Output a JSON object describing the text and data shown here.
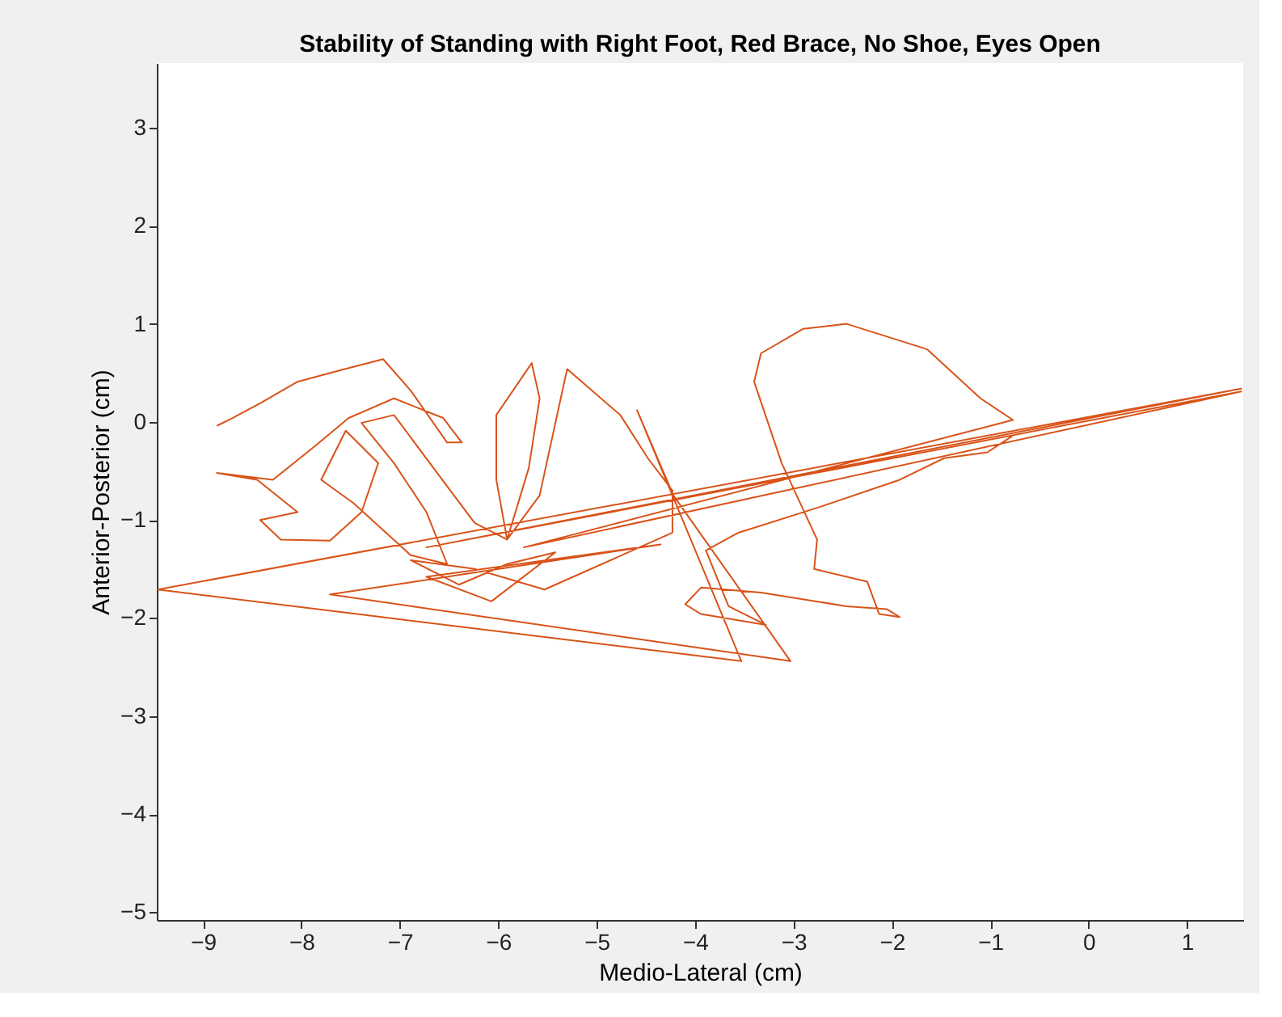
{
  "chart_data": {
    "type": "line",
    "title": "Stability of Standing with Right Foot, Red Brace, No Shoe, Eyes Open",
    "xlabel": "Medio-Lateral (cm)",
    "ylabel": "Anterior-Posterior (cm)",
    "xlim": [
      -9.47,
      1.57
    ],
    "ylim": [
      -5.08,
      3.66
    ],
    "xticks": [
      -9,
      -8,
      -7,
      -6,
      -5,
      -4,
      -3,
      -2,
      -1,
      0,
      1
    ],
    "yticks": [
      -5,
      -4,
      -3,
      -2,
      -1,
      0,
      1,
      2,
      3
    ],
    "grid": false,
    "marker": "none",
    "line_style": "solid",
    "series": [
      {
        "color": "#d95319",
        "x": [
          -8.86,
          -8.7,
          -8.42,
          -8.04,
          -7.63,
          -7.17,
          -6.89,
          -6.52,
          -6.37,
          -6.56,
          -7.06,
          -7.52,
          -7.88,
          -8.29,
          -8.86,
          -8.45,
          -8.04,
          -8.42,
          -8.21,
          -7.71,
          -7.39,
          -7.22,
          -7.55,
          -7.8,
          -7.47,
          -6.89,
          -6.52,
          -6.73,
          -7.06,
          -7.39,
          -7.06,
          -6.45,
          -6.24,
          -5.91,
          -6.02,
          -6.02,
          -5.66,
          -5.58,
          -5.69,
          -5.91,
          -5.58,
          -5.3,
          -4.76,
          -4.48,
          -4.23,
          -4.23,
          -5.53,
          -6.24,
          -6.89,
          -6.4,
          -5.91,
          -5.42,
          -6.07,
          -6.73,
          -4.35,
          -7.71,
          -3.03,
          -4.22,
          -4.59,
          -3.53,
          -9.46,
          1.55,
          -6.73,
          1.55,
          -5.74,
          -0.77,
          -1.1,
          -1.64,
          -2.46,
          -2.9,
          -3.33,
          -3.4,
          -3.12,
          -2.76,
          -2.79,
          -2.25,
          -2.13,
          -1.92,
          -2.05,
          -2.46,
          -3.33,
          -3.94,
          -4.1,
          -3.94,
          -3.28,
          -3.66,
          -3.89,
          -3.56,
          -2.74,
          -1.92,
          -1.47,
          -1.03,
          -0.77
        ],
        "values": [
          -0.04,
          0.04,
          0.19,
          0.41,
          0.52,
          0.64,
          0.32,
          -0.21,
          -0.21,
          0.04,
          0.24,
          0.04,
          -0.26,
          -0.59,
          -0.52,
          -0.59,
          -0.92,
          -1.0,
          -1.2,
          -1.21,
          -0.92,
          -0.42,
          -0.09,
          -0.59,
          -0.83,
          -1.36,
          -1.45,
          -0.92,
          -0.42,
          -0.01,
          0.07,
          -0.75,
          -1.03,
          -1.2,
          -0.59,
          0.07,
          0.6,
          0.24,
          -0.47,
          -1.2,
          -0.75,
          0.54,
          0.07,
          -0.37,
          -0.7,
          -1.13,
          -1.71,
          -1.5,
          -1.41,
          -1.66,
          -1.45,
          -1.33,
          -1.83,
          -1.58,
          -1.25,
          -1.76,
          -2.44,
          -0.75,
          0.12,
          -2.44,
          -1.71,
          0.34,
          -1.28,
          0.31,
          -1.28,
          0.02,
          0.24,
          0.74,
          1.0,
          0.95,
          0.7,
          0.41,
          -0.42,
          -1.2,
          -1.5,
          -1.63,
          -1.96,
          -1.99,
          -1.91,
          -1.88,
          -1.74,
          -1.69,
          -1.86,
          -1.96,
          -2.07,
          -1.88,
          -1.31,
          -1.13,
          -0.87,
          -0.59,
          -0.37,
          -0.31,
          -0.14
        ]
      }
    ]
  }
}
